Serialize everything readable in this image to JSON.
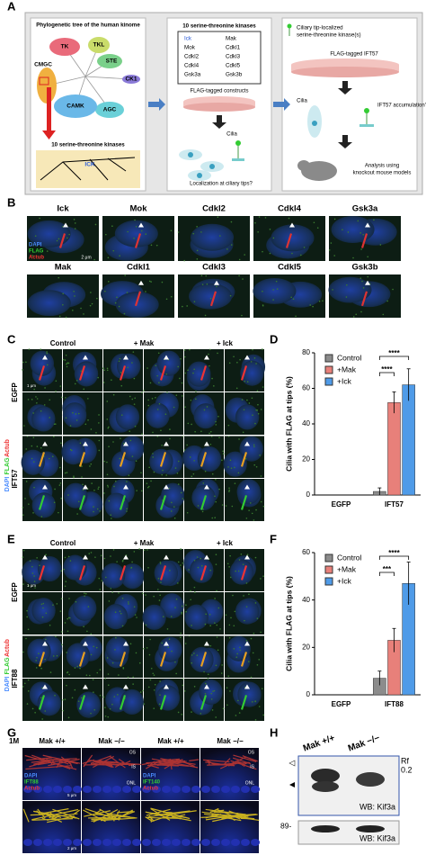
{
  "figure": {
    "panel_labels": [
      "A",
      "B",
      "C",
      "D",
      "E",
      "F",
      "G",
      "H"
    ],
    "a": {
      "kinome_title": "Phylogenetic tree of the human kinome",
      "groups": [
        "TK",
        "TKL",
        "STE",
        "CK1",
        "AGC",
        "CAMK",
        "CMGC"
      ],
      "selection": "10 serine-threonine kinases",
      "ick": "ICK",
      "screen_title": "10 serine-threonine kinases",
      "kinases": [
        "Ick",
        "Mok",
        "Cdkl2",
        "Cdkl4",
        "Gsk3a",
        "Mak",
        "Cdkl1",
        "Cdkl3",
        "Cdkl5",
        "Gsk3b"
      ],
      "constructs": "FLAG-tagged constructs",
      "cilia": "Cilia",
      "question1": "Localization at ciliary tips?",
      "selected": [
        "Ciliary tip-localized",
        "serine-threonine kinase(s)"
      ],
      "ift57": "FLAG-tagged IFT57",
      "cilia2": "Cilia",
      "question2": "IFT57 accumulation?",
      "analysis": [
        "Analysis using",
        "knockout mouse models"
      ]
    },
    "b": {
      "kinases": [
        "Ick",
        "Mok",
        "Cdkl2",
        "Cdkl4",
        "Gsk3a",
        "Mak",
        "Cdkl1",
        "Cdkl3",
        "Cdkl5",
        "Gsk3b"
      ],
      "channels": [
        "DAPI",
        "FLAG",
        "Actub"
      ],
      "scale": "2 μm"
    },
    "c": {
      "conditions": [
        "Control",
        "+ Mak",
        "+ Ick"
      ],
      "rows": [
        "EGFP",
        "IFT57"
      ],
      "channels": [
        "DAPI",
        "FLAG",
        "Actub"
      ],
      "scale": "1 μm"
    },
    "e": {
      "conditions": [
        "Control",
        "+ Mak",
        "+ Ick"
      ],
      "rows": [
        "EGFP",
        "IFT88"
      ],
      "channels": [
        "DAPI",
        "FLAG",
        "Actub"
      ],
      "scale": "1 μm"
    },
    "g": {
      "age": "1M",
      "genotypes": [
        "Mak +/+",
        "Mak −/−",
        "Mak +/+",
        "Mak −/−"
      ],
      "channels_left": [
        "DAPI",
        "IFT88",
        "Actub"
      ],
      "channels_right": [
        "DAPI",
        "IFT140",
        "Actub"
      ],
      "layers": [
        "OS",
        "IS",
        "ONL"
      ],
      "scale": "5 μm",
      "scale2": "2 μm"
    },
    "h": {
      "genotypes": [
        "Mak +/+",
        "Mak −/−"
      ],
      "rf": "Rf",
      "rf_value": "0.2",
      "marker": "89-",
      "blots": [
        "WB: Kif3a",
        "WB: Kif3a"
      ]
    }
  },
  "chart_data": [
    {
      "type": "bar",
      "ylabel": "Cilia with FLAG at tips (%)",
      "categories": [
        "EGFP",
        "IFT57"
      ],
      "series": [
        {
          "name": "Control",
          "color": "#8c8c8c",
          "values": [
            0,
            2
          ],
          "errors": [
            0,
            2
          ]
        },
        {
          "name": "+Mak",
          "color": "#e8807a",
          "values": [
            0,
            52
          ],
          "errors": [
            0,
            6
          ]
        },
        {
          "name": "+Ick",
          "color": "#4f9be8",
          "values": [
            0,
            62
          ],
          "errors": [
            0,
            9
          ]
        }
      ],
      "ylim": [
        0,
        80
      ],
      "yticks": [
        0,
        20,
        40,
        60,
        80
      ],
      "legend": "upper left",
      "annotations": [
        "****",
        "****"
      ]
    },
    {
      "type": "bar",
      "ylabel": "Cilia with FLAG at tips (%)",
      "categories": [
        "EGFP",
        "IFT88"
      ],
      "series": [
        {
          "name": "Control",
          "color": "#8c8c8c",
          "values": [
            0,
            7
          ],
          "errors": [
            0,
            3
          ]
        },
        {
          "name": "+Mak",
          "color": "#e8807a",
          "values": [
            0,
            23
          ],
          "errors": [
            0,
            5
          ]
        },
        {
          "name": "+Ick",
          "color": "#4f9be8",
          "values": [
            0,
            47
          ],
          "errors": [
            0,
            9
          ]
        }
      ],
      "ylim": [
        0,
        60
      ],
      "yticks": [
        0,
        20,
        40,
        60
      ],
      "legend": "upper left",
      "annotations": [
        "***",
        "****"
      ]
    }
  ]
}
